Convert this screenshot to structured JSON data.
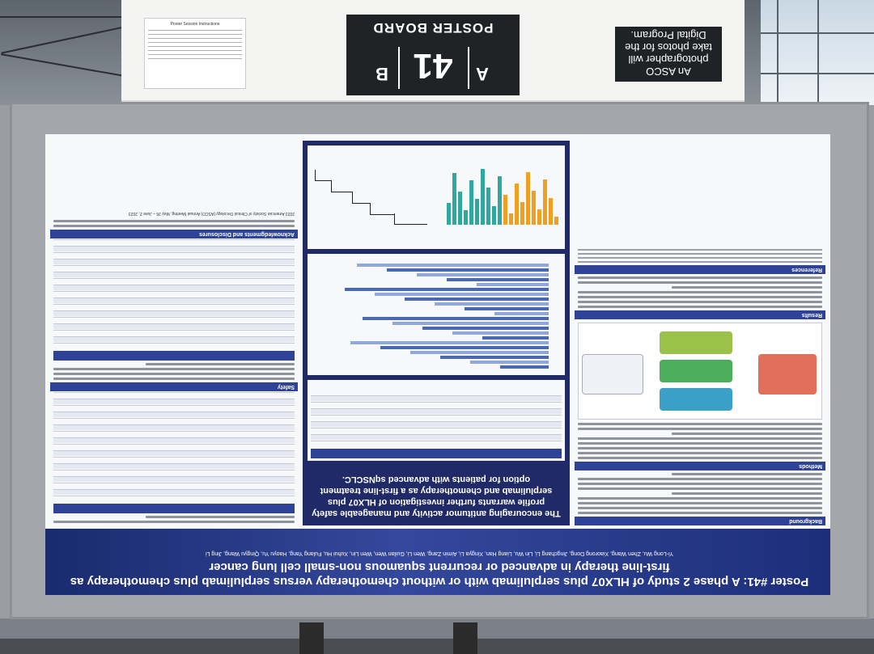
{
  "header": {
    "board_title": "POSTER BOARD",
    "board_number": "41",
    "side_a": "A",
    "side_b": "B",
    "photographer_note": "An ASCO photographer will take photos for the Digital Program.",
    "notice_title": "Poster Session Instructions"
  },
  "poster": {
    "title": "Poster #41: A phase 2 study of HLX07 plus serplulimab with or without chemotherapy versus serplulimab plus chemotherapy as first-line therapy in advanced or recurrent squamous non-small cell lung cancer",
    "authors": "Yi-Long Wu, Zhen Wang, Xiaorong Dong, Jingchang Li, Lin Wu, Liang Han, Xingya Li, Aimin Zang, Wen Li, Guilan Wen, Wen Lin, Xuhui Hu, Fulang Yang, Haoyu Yu, Qingyu Wang, Jing Li",
    "conclusion": "The encouraging antitumor activity and manageable safety profile warrants further investigation of HLX07 plus serplulimab and chemotherapy as a first-line treatment option for patients with advanced sqNSCLC.",
    "sections": {
      "background": "Background",
      "methods": "Methods",
      "results": "Results",
      "references": "References",
      "safety": "Safety",
      "acknowledgments": "Acknowledgments and Disclosures"
    },
    "meeting": "2023 American Society of Clinical Oncology (ASCO) Annual Meeting, May 26 – June 2, 2023"
  },
  "colors": {
    "banner": "#1c2e7a",
    "accent": "#2f4396",
    "waterfall_a": "#8fa8d8",
    "waterfall_b": "#f0a020"
  }
}
